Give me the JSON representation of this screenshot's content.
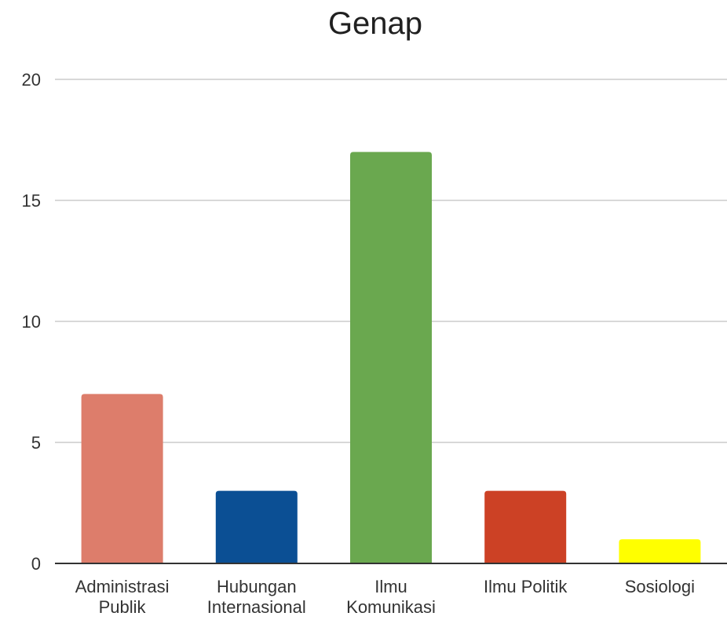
{
  "chart_data": {
    "type": "bar",
    "title": "Genap",
    "xlabel": "",
    "ylabel": "",
    "ylim": [
      0,
      20
    ],
    "yticks": [
      0,
      5,
      10,
      15,
      20
    ],
    "grid": true,
    "legend": "none",
    "categories": [
      [
        "Administrasi",
        "Publik"
      ],
      [
        "Hubungan",
        "Internasional"
      ],
      [
        "Ilmu",
        "Komunikasi"
      ],
      [
        "Ilmu Politik"
      ],
      [
        "Sosiologi"
      ]
    ],
    "values": [
      7,
      3,
      17,
      3,
      1
    ],
    "colors": [
      "#dd7d6b",
      "#0b4f94",
      "#6aa84f",
      "#cc4125",
      "#ffff00"
    ]
  }
}
